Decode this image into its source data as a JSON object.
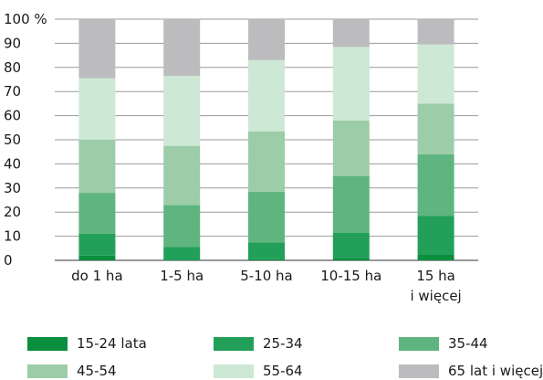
{
  "chart_data": {
    "type": "bar",
    "stacked": true,
    "categories": [
      [
        "do 1 ha"
      ],
      [
        "1-5 ha"
      ],
      [
        "5-10 ha"
      ],
      [
        "10-15 ha"
      ],
      [
        "15 ha",
        "i więcej"
      ]
    ],
    "y_ticks": [
      "0",
      "10",
      "20",
      "30",
      "40",
      "50",
      "60",
      "70",
      "80",
      "90",
      "100 %"
    ],
    "ylim": [
      0,
      100
    ],
    "grid": true,
    "legend_placement": "bottom",
    "series": [
      {
        "name": "15-24 lata",
        "color": "#0a8f3f",
        "values": [
          2,
          0,
          0.5,
          1,
          2.5
        ]
      },
      {
        "name": "25-34",
        "color": "#22a05a",
        "values": [
          9,
          5.5,
          7,
          10.5,
          16
        ]
      },
      {
        "name": "35-44",
        "color": "#5fb57f",
        "values": [
          17,
          17.5,
          21,
          23.5,
          25.5
        ]
      },
      {
        "name": "45-54",
        "color": "#9ccca8",
        "values": [
          22,
          24.5,
          25,
          23,
          21
        ]
      },
      {
        "name": "55-64",
        "color": "#cde8d4",
        "values": [
          25.5,
          29,
          29.5,
          30.5,
          24.5
        ]
      },
      {
        "name": "65 lat i więcej",
        "color": "#bcbcbe",
        "values": [
          24.5,
          23.5,
          17,
          11.5,
          10.5
        ]
      }
    ]
  }
}
